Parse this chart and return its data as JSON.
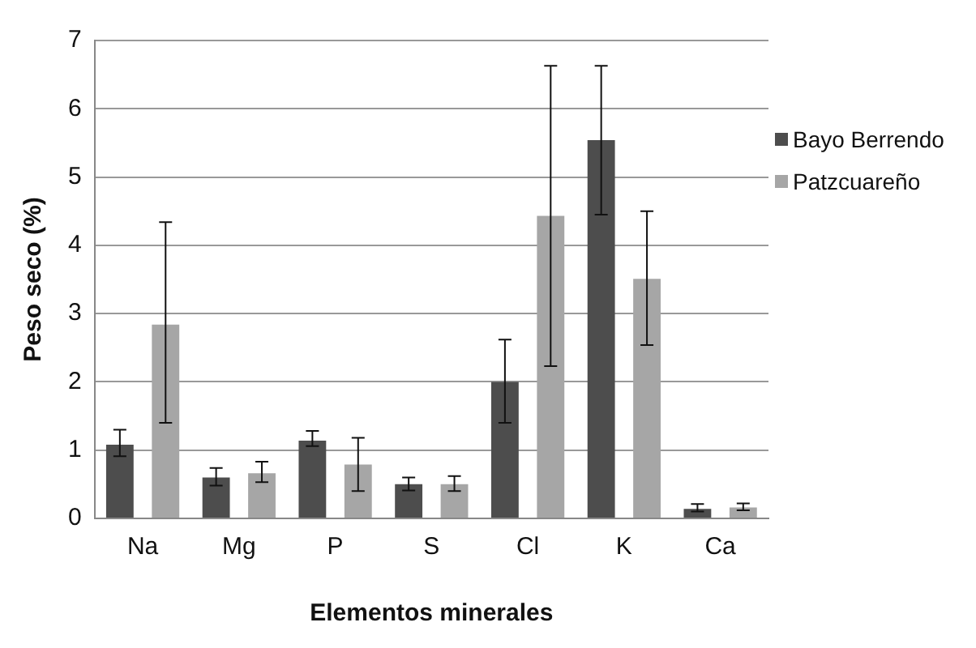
{
  "chart_data": {
    "type": "bar",
    "xlabel": "Elementos minerales",
    "ylabel": "Peso seco (%)",
    "categories": [
      "Na",
      "Mg",
      "P",
      "S",
      "Cl",
      "K",
      "Ca"
    ],
    "series": [
      {
        "name": "Bayo Berrendo",
        "color": "#4d4d4d",
        "values": [
          1.08,
          0.6,
          1.14,
          0.5,
          2.0,
          5.54,
          0.14
        ],
        "errors": [
          [
            0.91,
            1.3
          ],
          [
            0.48,
            0.74
          ],
          [
            1.06,
            1.28
          ],
          [
            0.41,
            0.6
          ],
          [
            1.4,
            2.62
          ],
          [
            4.45,
            6.63
          ],
          [
            0.1,
            0.21
          ]
        ]
      },
      {
        "name": "Patzcuareño",
        "color": "#a6a6a6",
        "values": [
          2.84,
          0.66,
          0.79,
          0.5,
          4.43,
          3.51,
          0.16
        ],
        "errors": [
          [
            1.4,
            4.34
          ],
          [
            0.53,
            0.83
          ],
          [
            0.4,
            1.18
          ],
          [
            0.4,
            0.62
          ],
          [
            2.23,
            6.63
          ],
          [
            2.54,
            4.5
          ],
          [
            0.12,
            0.22
          ]
        ]
      }
    ],
    "ylim": [
      0,
      7
    ],
    "yticks": [
      0,
      1,
      2,
      3,
      4,
      5,
      6,
      7
    ],
    "grid": "y",
    "legend": "right"
  }
}
